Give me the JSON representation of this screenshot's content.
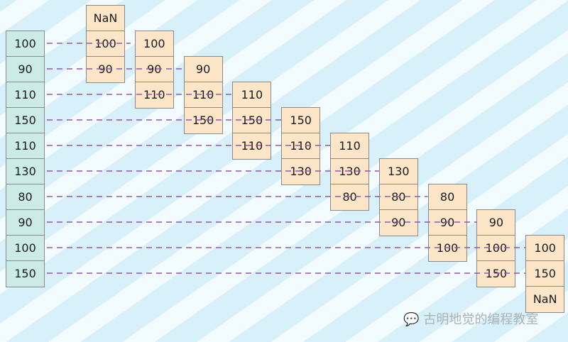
{
  "series": [
    "100",
    "90",
    "110",
    "150",
    "110",
    "130",
    "80",
    "90",
    "100",
    "150"
  ],
  "windows": [
    [
      "NaN",
      "100",
      "90"
    ],
    [
      "100",
      "90",
      "110"
    ],
    [
      "90",
      "110",
      "150"
    ],
    [
      "110",
      "150",
      "110"
    ],
    [
      "150",
      "110",
      "130"
    ],
    [
      "110",
      "130",
      "80"
    ],
    [
      "130",
      "80",
      "90"
    ],
    [
      "80",
      "90",
      "100"
    ],
    [
      "90",
      "100",
      "150"
    ],
    [
      "100",
      "150",
      "NaN"
    ]
  ],
  "colors": {
    "series_fill": "#cdebe6",
    "window_fill": "#fde5c7",
    "line": "#8e5aa8"
  },
  "watermark": {
    "icon": "wechat-icon",
    "text": "古明地觉的编程教室"
  }
}
